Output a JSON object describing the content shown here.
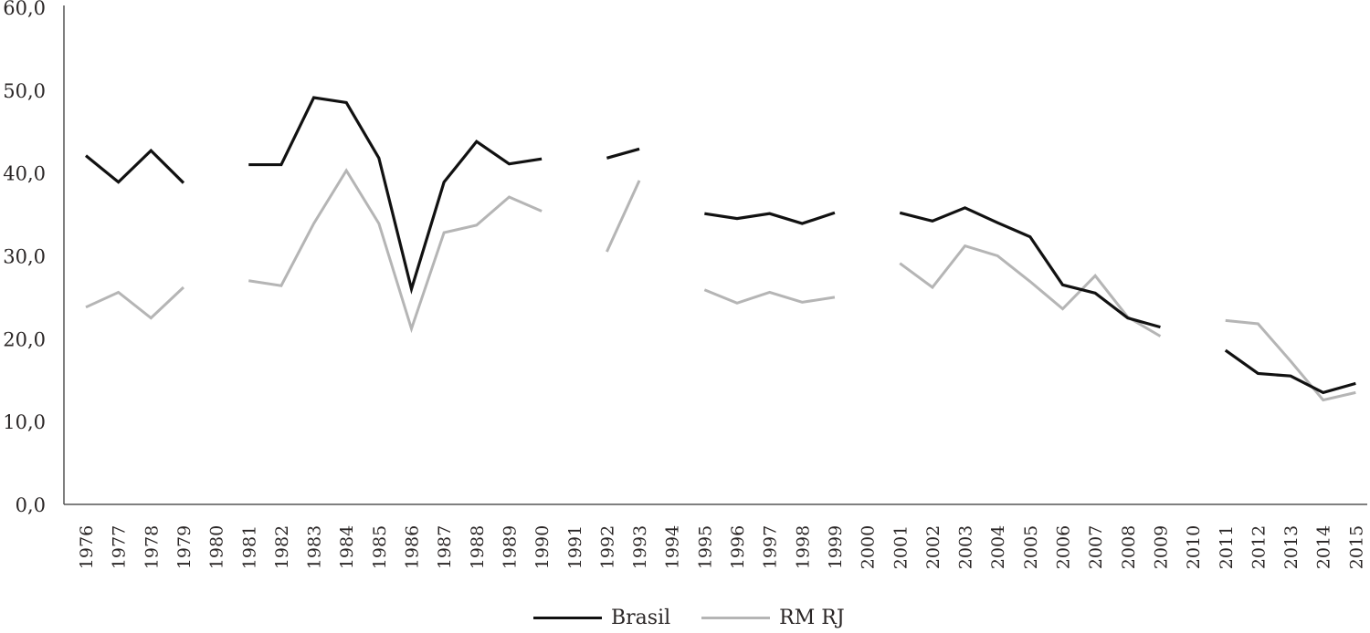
{
  "chart_data": {
    "type": "line",
    "title": "",
    "xlabel": "",
    "ylabel": "",
    "ylim": [
      0,
      60
    ],
    "y_ticks": [
      "0,0",
      "10,0",
      "20,0",
      "30,0",
      "40,0",
      "50,0",
      "60,0"
    ],
    "y_tick_values": [
      0,
      10,
      20,
      30,
      40,
      50,
      60
    ],
    "grid": false,
    "legend_position": "bottom",
    "x": [
      "1976",
      "1977",
      "1978",
      "1979",
      "1980",
      "1981",
      "1982",
      "1983",
      "1984",
      "1985",
      "1986",
      "1987",
      "1988",
      "1989",
      "1990",
      "1991",
      "1992",
      "1993",
      "1994",
      "1995",
      "1996",
      "1997",
      "1998",
      "1999",
      "2000",
      "2001",
      "2002",
      "2003",
      "2004",
      "2005",
      "2006",
      "2007",
      "2008",
      "2009",
      "2010",
      "2011",
      "2012",
      "2013",
      "2014",
      "2015"
    ],
    "series": [
      {
        "name": "Brasil",
        "color": "#111111",
        "values": [
          42.1,
          38.9,
          42.7,
          38.8,
          null,
          41.0,
          41.0,
          49.1,
          48.5,
          41.8,
          26.0,
          38.9,
          43.8,
          41.1,
          41.7,
          null,
          41.8,
          42.9,
          null,
          35.1,
          34.5,
          35.1,
          33.9,
          35.2,
          null,
          35.2,
          34.2,
          35.8,
          34.0,
          32.3,
          26.5,
          25.5,
          22.5,
          21.4,
          null,
          18.6,
          15.8,
          15.5,
          13.5,
          14.6
        ]
      },
      {
        "name": "RM RJ",
        "color": "#b5b5b5",
        "values": [
          23.8,
          25.6,
          22.5,
          26.2,
          null,
          27.0,
          26.4,
          33.9,
          40.3,
          33.9,
          21.2,
          32.8,
          33.7,
          37.1,
          35.4,
          null,
          30.5,
          39.1,
          null,
          25.9,
          24.3,
          25.6,
          24.4,
          25.0,
          null,
          29.1,
          26.2,
          31.2,
          30.0,
          26.9,
          23.6,
          27.6,
          22.6,
          20.3,
          null,
          22.2,
          21.8,
          17.3,
          12.6,
          13.5
        ]
      }
    ]
  },
  "legend": {
    "items": [
      {
        "label": "Brasil",
        "color": "#111111"
      },
      {
        "label": "RM RJ",
        "color": "#b5b5b5"
      }
    ]
  }
}
